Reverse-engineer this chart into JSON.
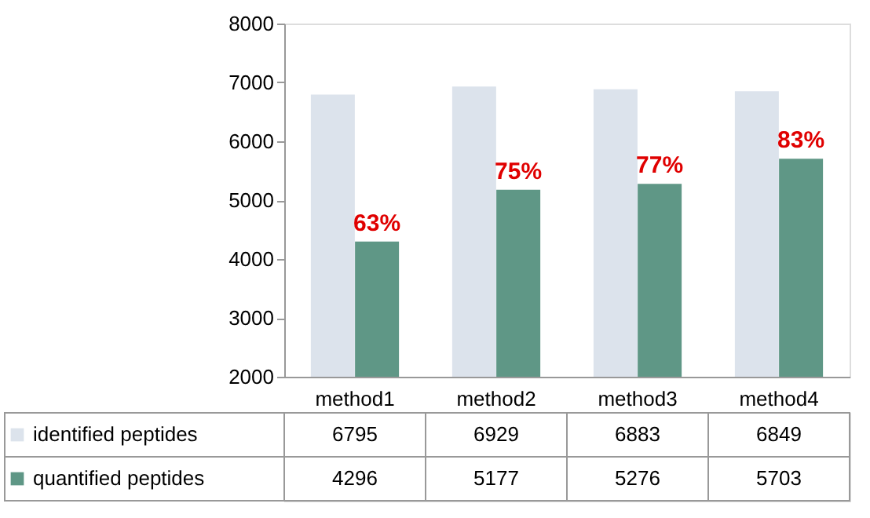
{
  "chart_data": {
    "type": "bar",
    "categories": [
      "method1",
      "method2",
      "method3",
      "method4"
    ],
    "series": [
      {
        "name": "identified peptides",
        "color": "#dce3ec",
        "values": [
          6795,
          6929,
          6883,
          6849
        ]
      },
      {
        "name": "quantified peptides",
        "color": "#5f9786",
        "values": [
          4296,
          5177,
          5276,
          5703
        ]
      }
    ],
    "ylim": [
      2000,
      8000
    ],
    "yticks": [
      2000,
      3000,
      4000,
      5000,
      6000,
      7000,
      8000
    ],
    "grid": false,
    "legend": "bottom",
    "data_labels": true,
    "annotations": [
      {
        "text": "63%",
        "x": "method1",
        "y": 4296
      },
      {
        "text": "75%",
        "x": "method2",
        "y": 5177
      },
      {
        "text": "77%",
        "x": "method3",
        "y": 5276
      },
      {
        "text": "83%",
        "x": "method4",
        "y": 5703
      }
    ]
  }
}
